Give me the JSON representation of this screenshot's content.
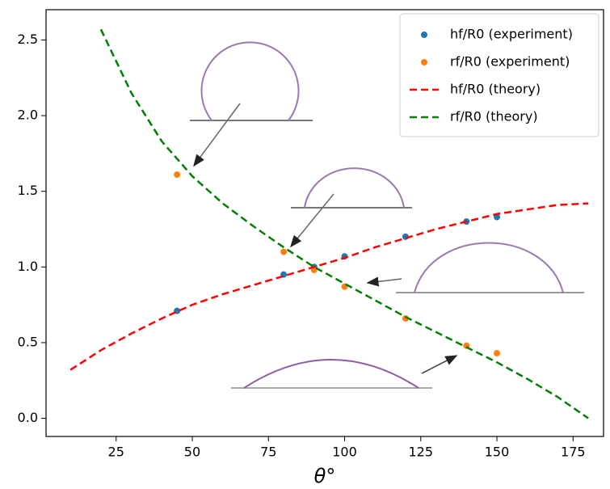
{
  "chart_data": {
    "type": "scatter",
    "xlabel": "θ°",
    "xlim": [
      2,
      185
    ],
    "ylim": [
      -0.12,
      2.7
    ],
    "xticks": [
      25,
      50,
      75,
      100,
      125,
      150,
      175
    ],
    "yticks": [
      {
        "value": 0,
        "label": "0.0"
      },
      0.5,
      {
        "value": 1,
        "label": "1.0"
      },
      1.5,
      {
        "value": 2,
        "label": "2.0"
      },
      2.5
    ],
    "legend": "upper right",
    "series": [
      {
        "name": "hf/R0 (experiment)",
        "kind": "scatter",
        "color": "#1f77b4",
        "x": [
          45,
          80,
          90,
          100,
          120,
          140,
          150
        ],
        "values": [
          0.71,
          0.95,
          1.0,
          1.07,
          1.2,
          1.3,
          1.33
        ]
      },
      {
        "name": "rf/R0 (experiment)",
        "kind": "scatter",
        "color": "#ff7f0e",
        "x": [
          45,
          80,
          90,
          100,
          120,
          140,
          150
        ],
        "values": [
          1.61,
          1.1,
          0.98,
          0.87,
          0.66,
          0.48,
          0.43
        ]
      },
      {
        "name": "hf/R0 (theory)",
        "kind": "dashed-line",
        "color": "#ff0000",
        "x": [
          10,
          20,
          30,
          40,
          50,
          60,
          70,
          80,
          90,
          100,
          110,
          120,
          130,
          140,
          150,
          160,
          170,
          180
        ],
        "values": [
          0.32,
          0.45,
          0.56,
          0.66,
          0.75,
          0.82,
          0.88,
          0.94,
          1.0,
          1.06,
          1.13,
          1.19,
          1.25,
          1.3,
          1.35,
          1.38,
          1.41,
          1.42
        ]
      },
      {
        "name": "rf/R0 (theory)",
        "kind": "dashed-line",
        "color": "#008000",
        "x": [
          20,
          30,
          40,
          50,
          60,
          70,
          80,
          90,
          100,
          110,
          120,
          130,
          140,
          150,
          160,
          170,
          180
        ],
        "values": [
          2.57,
          2.15,
          1.83,
          1.6,
          1.42,
          1.27,
          1.13,
          1.0,
          0.89,
          0.78,
          0.67,
          0.57,
          0.47,
          0.37,
          0.26,
          0.14,
          0.0
        ]
      }
    ]
  }
}
